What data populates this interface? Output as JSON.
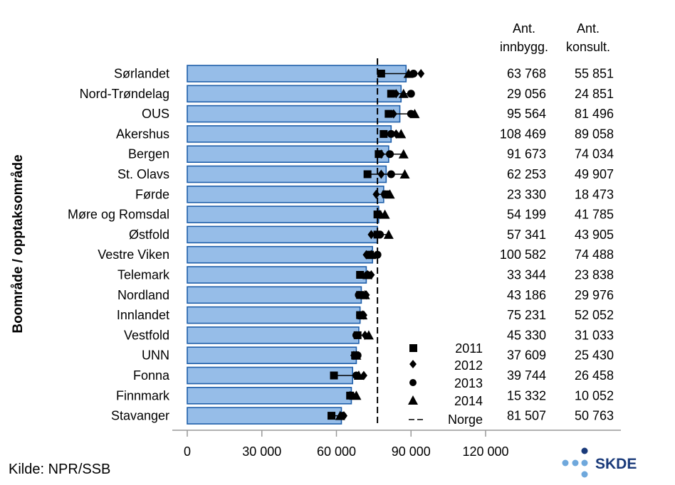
{
  "chart_data": {
    "type": "bar",
    "ylabel": "Boområde / opptaksområde",
    "categories": [
      "Sørlandet",
      "Nord-Trøndelag",
      "OUS",
      "Akershus",
      "Bergen",
      "St. Olavs",
      "Førde",
      "Møre og Romsdal",
      "Østfold",
      "Vestre Viken",
      "Telemark",
      "Nordland",
      "Innlandet",
      "Vestfold",
      "UNN",
      "Fonna",
      "Finnmark",
      "Stavanger"
    ],
    "bar_values": [
      88000,
      86000,
      85500,
      82000,
      81000,
      80000,
      79000,
      77000,
      76500,
      74500,
      72000,
      70000,
      69500,
      69000,
      68000,
      66500,
      66000,
      62000
    ],
    "series": [
      {
        "name": "2011",
        "marker": "square",
        "values": [
          78000,
          82000,
          81000,
          79000,
          77000,
          72500,
          80000,
          76500,
          76500,
          73500,
          69500,
          69500,
          69500,
          68500,
          67500,
          59000,
          65500,
          58000
        ]
      },
      {
        "name": "2012",
        "marker": "diamond",
        "values": [
          94000,
          84000,
          83000,
          84000,
          78000,
          78000,
          76000,
          77500,
          74000,
          72000,
          74000,
          72000,
          71000,
          71500,
          67000,
          71000,
          65500,
          63000
        ]
      },
      {
        "name": "2013",
        "marker": "circle",
        "values": [
          91000,
          90000,
          90000,
          82000,
          81500,
          82000,
          79500,
          77000,
          77500,
          76500,
          72500,
          69000,
          69500,
          68000,
          68500,
          68000,
          66000,
          62500
        ]
      },
      {
        "name": "2014",
        "marker": "triangle",
        "values": [
          89000,
          87000,
          91500,
          86000,
          87000,
          87500,
          81500,
          79500,
          81000,
          74000,
          72500,
          71500,
          70500,
          73000,
          68000,
          69000,
          68000,
          61500
        ]
      }
    ],
    "reference": {
      "name": "Norge",
      "value": 76500,
      "style": "dashed"
    },
    "xlim": [
      0,
      120000
    ],
    "xticks": [
      "0",
      "30 000",
      "60 000",
      "90 000",
      "120 000"
    ],
    "xtick_values": [
      0,
      30000,
      60000,
      90000,
      120000
    ],
    "table": {
      "col1_header": [
        "Ant.",
        "innbygg."
      ],
      "col2_header": [
        "Ant.",
        "konsult."
      ],
      "col1": [
        "63 768",
        "29 056",
        "95 564",
        "108 469",
        "91 673",
        "62 253",
        "23 330",
        "54 199",
        "57 341",
        "100 582",
        "33 344",
        "43 186",
        "75 231",
        "45 330",
        "37 609",
        "39 744",
        "15 332",
        "81 507"
      ],
      "col2": [
        "55 851",
        "24 851",
        "81 496",
        "89 058",
        "74 034",
        "49 907",
        "18 473",
        "41 785",
        "43 905",
        "74 488",
        "23 838",
        "29 976",
        "52 052",
        "31 033",
        "25 430",
        "26 458",
        "10 052",
        "50 763"
      ]
    },
    "bar_color": "#96bde8",
    "bar_edge_color": "#1f5faa"
  },
  "source": "Kilde: NPR/SSB",
  "logo_text": "SKDE",
  "logo_colors": [
    "#1a3a7a",
    "#6fa8dc"
  ]
}
